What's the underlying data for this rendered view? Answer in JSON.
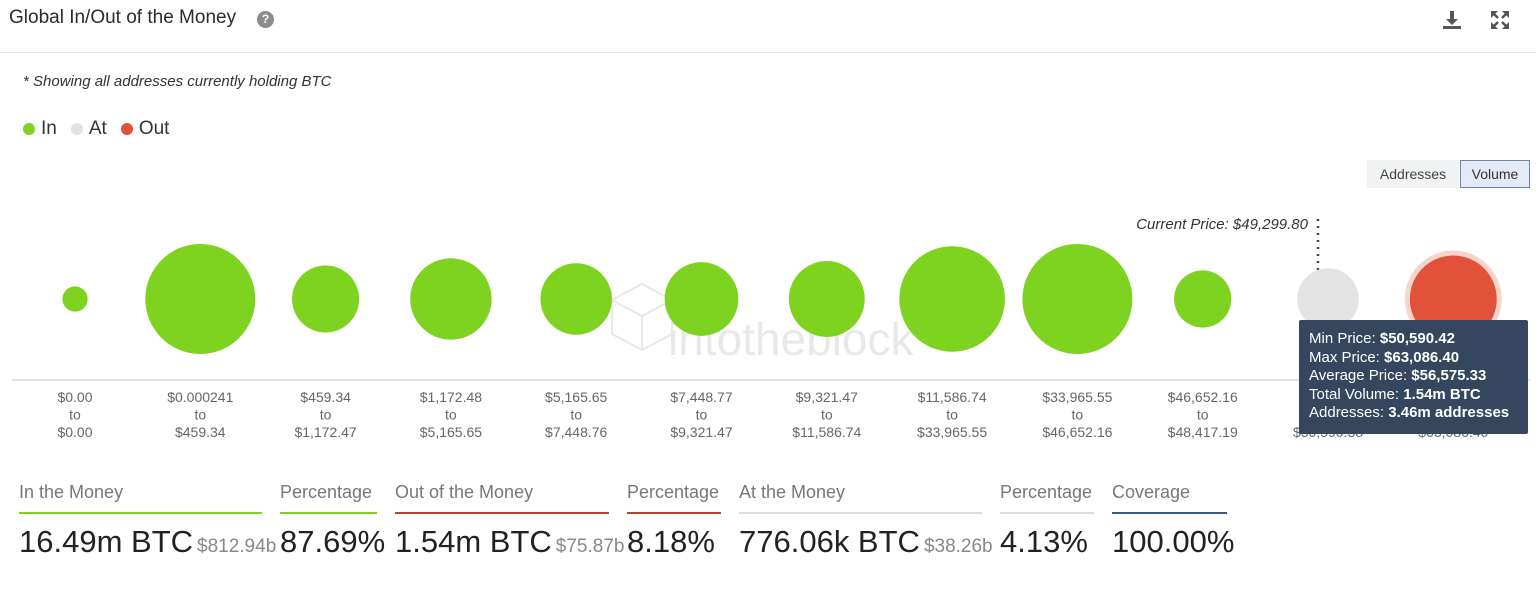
{
  "header": {
    "title": "Global In/Out of the Money",
    "help_icon": "question-circle-icon",
    "download_icon": "download-icon",
    "expand_icon": "expand-icon"
  },
  "note": "* Showing all addresses currently holding BTC",
  "legend": [
    {
      "label": "In",
      "color": "#7ed321"
    },
    {
      "label": "At",
      "color": "#e3e3e3"
    },
    {
      "label": "Out",
      "color": "#e2513a"
    }
  ],
  "toggle": {
    "addresses_label": "Addresses",
    "volume_label": "Volume",
    "selected": "Volume"
  },
  "current_price_label": "Current Price: $49,299.80",
  "watermark": "intotheblock",
  "tooltip": {
    "min_label": "Min Price:",
    "min_value": "$50,590.42",
    "max_label": "Max Price:",
    "max_value": "$63,086.40",
    "avg_label": "Average Price:",
    "avg_value": "$56,575.33",
    "vol_label": "Total Volume:",
    "vol_value": "1.54m BTC",
    "addr_label": "Addresses:",
    "addr_value": "3.46m addresses"
  },
  "chart_data": {
    "type": "bubble",
    "size_metric": "Volume",
    "note": "bubble size shown relative to largest cluster",
    "clusters": [
      {
        "from": "$0.00",
        "to": "$0.00",
        "status": "in",
        "relative_size": 0.23
      },
      {
        "from": "$0.000241",
        "to": "$459.34",
        "status": "in",
        "relative_size": 1.0
      },
      {
        "from": "$459.34",
        "to": "$1,172.47",
        "status": "in",
        "relative_size": 0.61
      },
      {
        "from": "$1,172.48",
        "to": "$5,165.65",
        "status": "in",
        "relative_size": 0.74
      },
      {
        "from": "$5,165.65",
        "to": "$7,448.76",
        "status": "in",
        "relative_size": 0.65
      },
      {
        "from": "$7,448.77",
        "to": "$9,321.47",
        "status": "in",
        "relative_size": 0.67
      },
      {
        "from": "$9,321.47",
        "to": "$11,586.74",
        "status": "in",
        "relative_size": 0.69
      },
      {
        "from": "$11,586.74",
        "to": "$33,965.55",
        "status": "in",
        "relative_size": 0.96
      },
      {
        "from": "$33,965.55",
        "to": "$46,652.16",
        "status": "in",
        "relative_size": 1.0
      },
      {
        "from": "$46,652.16",
        "to": "$48,417.19",
        "status": "in",
        "relative_size": 0.52
      },
      {
        "from": "",
        "to": "$50,590.38",
        "status": "at",
        "relative_size": 0.56
      },
      {
        "from": "",
        "to": "$63,086.40",
        "status": "out",
        "relative_size": 0.79
      }
    ]
  },
  "stats": [
    {
      "label": "In the Money",
      "value": "16.49m BTC",
      "usd": "$812.94b",
      "color": "#7ed321"
    },
    {
      "label": "Percentage",
      "value": "87.69%",
      "usd": "",
      "color": "#7ed321"
    },
    {
      "label": "Out of the Money",
      "value": "1.54m BTC",
      "usd": "$75.87b",
      "color": "#b5432e"
    },
    {
      "label": "Percentage",
      "value": "8.18%",
      "usd": "",
      "color": "#b5432e"
    },
    {
      "label": "At the Money",
      "value": "776.06k BTC",
      "usd": "$38.26b",
      "color": "#dcdcdc"
    },
    {
      "label": "Percentage",
      "value": "4.13%",
      "usd": "",
      "color": "#dcdcdc"
    },
    {
      "label": "Coverage",
      "value": "100.00%",
      "usd": "",
      "color": "#3d5a80"
    }
  ]
}
